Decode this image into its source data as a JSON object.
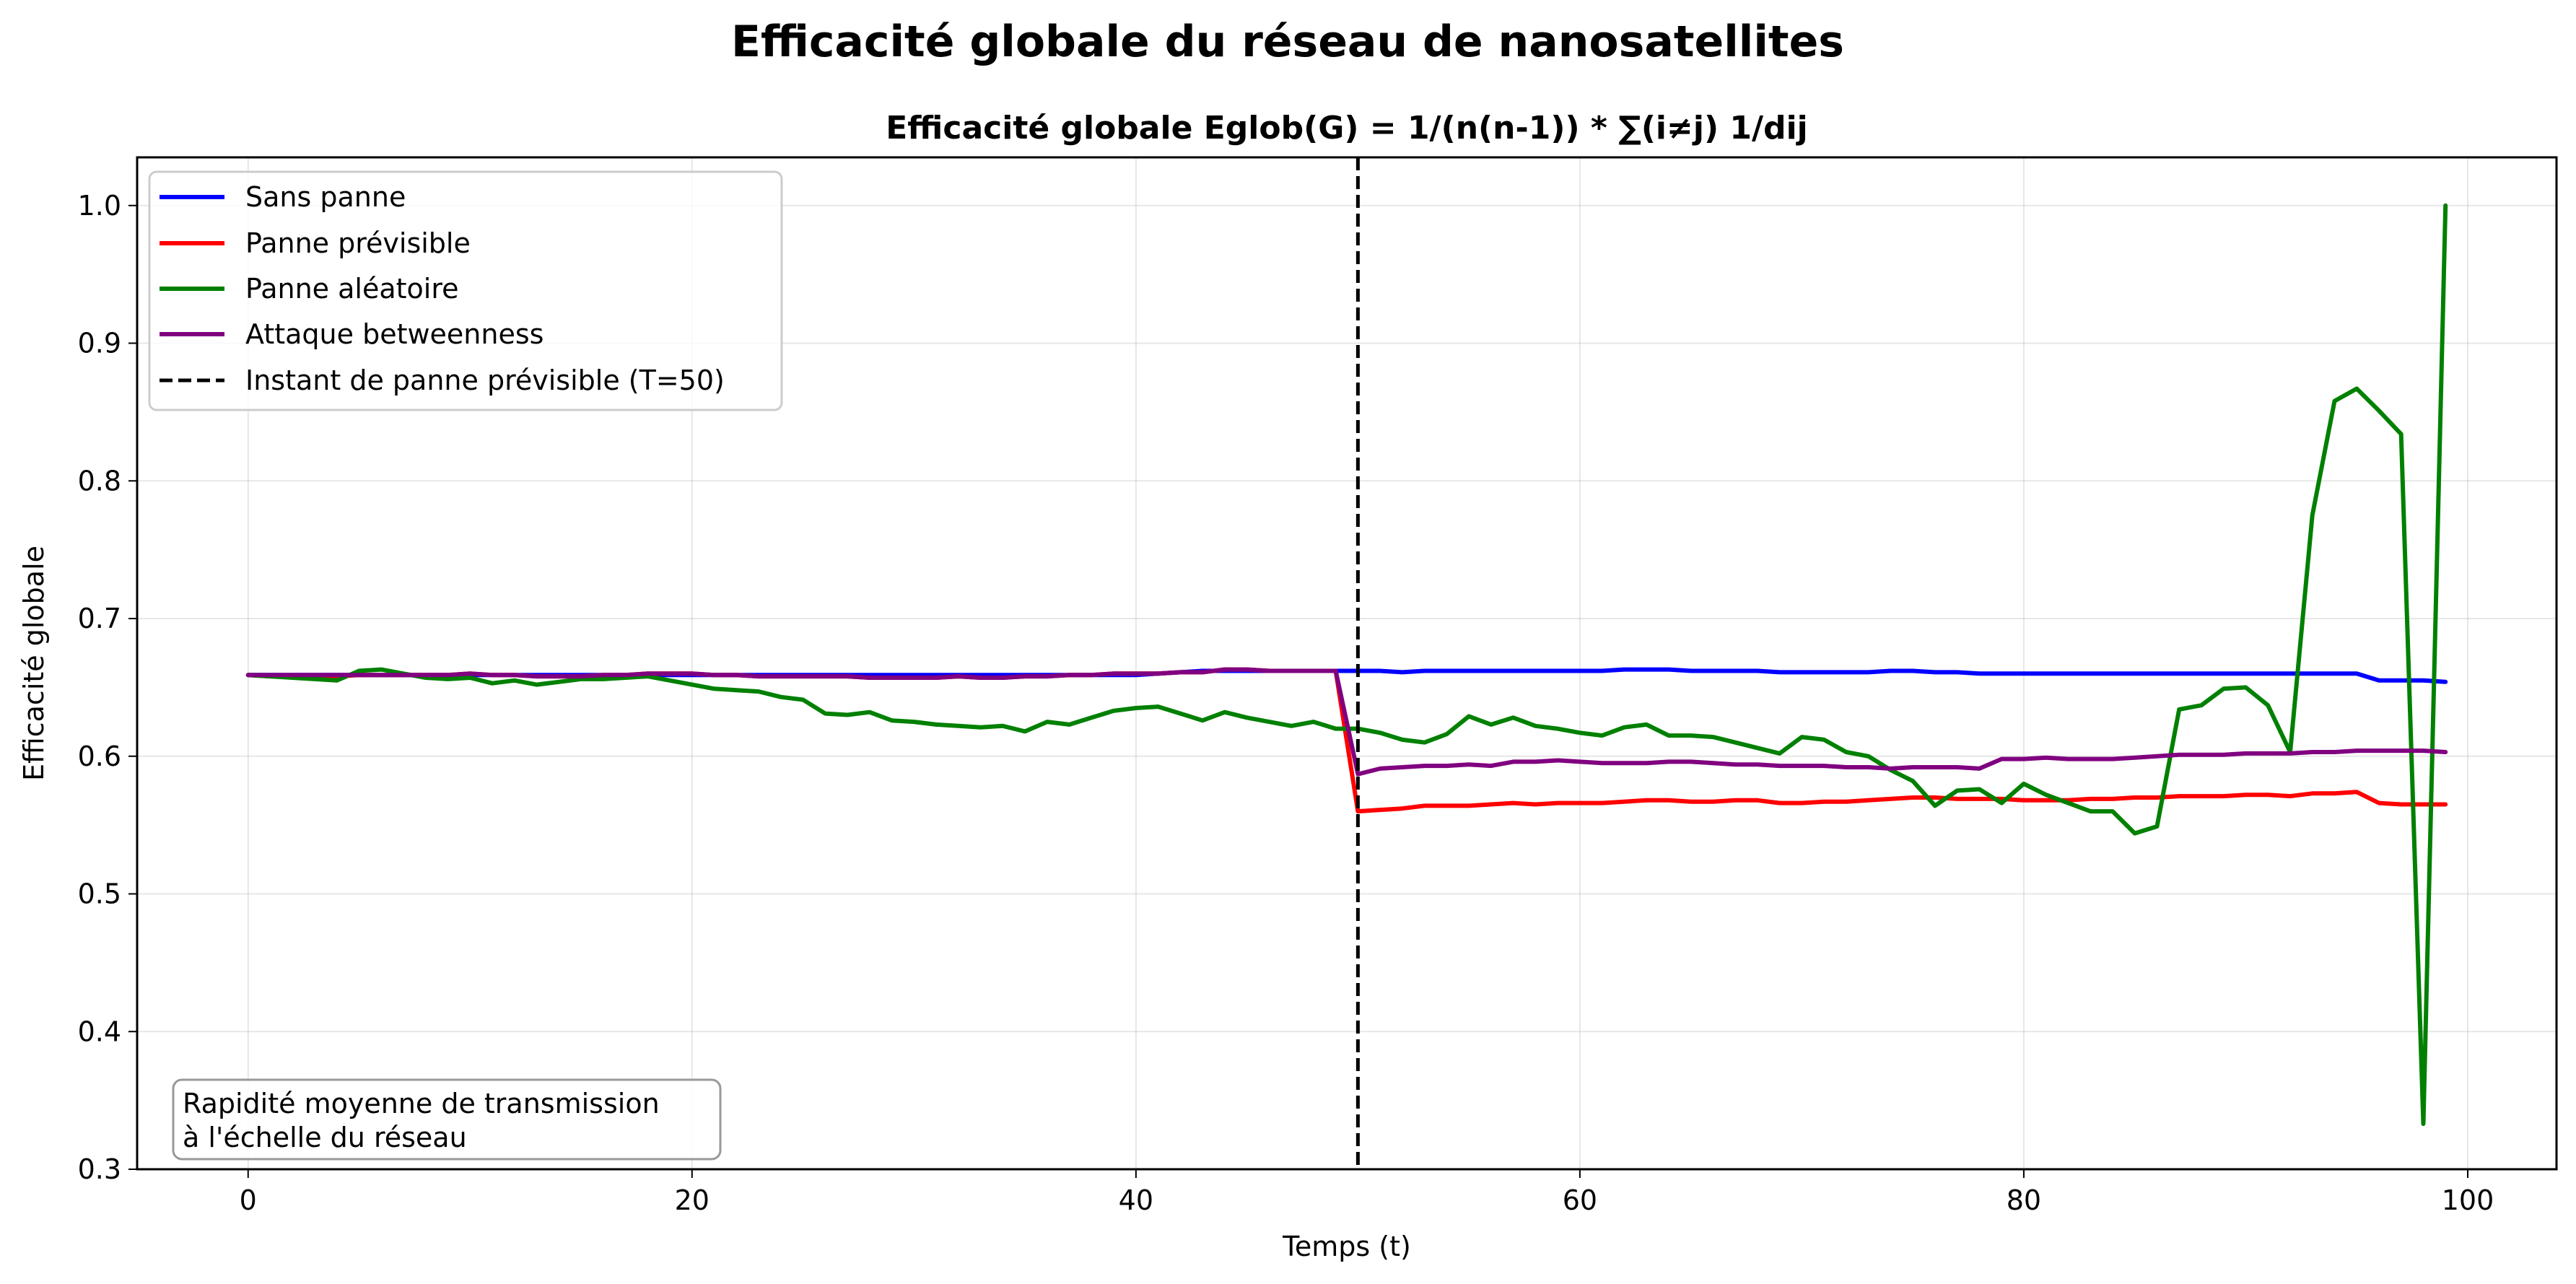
{
  "figure": {
    "suptitle": "Efficacité globale du réseau de nanosatellites"
  },
  "chart_data": {
    "type": "line",
    "title": "Efficacité globale Eglob(G) = 1/(n(n-1)) * ∑(i≠j) 1/dij",
    "xlabel": "Temps (t)",
    "ylabel": "Efficacité globale",
    "xlim": [
      -5,
      104
    ],
    "ylim": [
      0.3,
      1.035
    ],
    "xticks": [
      0,
      20,
      40,
      60,
      80,
      100
    ],
    "yticks": [
      0.3,
      0.4,
      0.5,
      0.6,
      0.7,
      0.8,
      0.9,
      1.0
    ],
    "xtick_labels": [
      "0",
      "20",
      "40",
      "60",
      "80",
      "100"
    ],
    "ytick_labels": [
      "0.3",
      "0.4",
      "0.5",
      "0.6",
      "0.7",
      "0.8",
      "0.9",
      "1.0"
    ],
    "grid": true,
    "legend_position": "top-left",
    "x": [
      0,
      1,
      2,
      3,
      4,
      5,
      6,
      7,
      8,
      9,
      10,
      11,
      12,
      13,
      14,
      15,
      16,
      17,
      18,
      19,
      20,
      21,
      22,
      23,
      24,
      25,
      26,
      27,
      28,
      29,
      30,
      31,
      32,
      33,
      34,
      35,
      36,
      37,
      38,
      39,
      40,
      41,
      42,
      43,
      44,
      45,
      46,
      47,
      48,
      49,
      50,
      51,
      52,
      53,
      54,
      55,
      56,
      57,
      58,
      59,
      60,
      61,
      62,
      63,
      64,
      65,
      66,
      67,
      68,
      69,
      70,
      71,
      72,
      73,
      74,
      75,
      76,
      77,
      78,
      79,
      80,
      81,
      82,
      83,
      84,
      85,
      86,
      87,
      88,
      89,
      90,
      91,
      92,
      93,
      94,
      95,
      96,
      97,
      98,
      99
    ],
    "series": [
      {
        "name": "Sans panne",
        "color": "#0000ff",
        "values": [
          0.659,
          0.659,
          0.659,
          0.659,
          0.659,
          0.659,
          0.659,
          0.659,
          0.659,
          0.659,
          0.659,
          0.659,
          0.659,
          0.659,
          0.659,
          0.659,
          0.659,
          0.659,
          0.659,
          0.659,
          0.659,
          0.659,
          0.659,
          0.659,
          0.659,
          0.659,
          0.659,
          0.659,
          0.659,
          0.659,
          0.659,
          0.659,
          0.659,
          0.659,
          0.659,
          0.659,
          0.659,
          0.659,
          0.659,
          0.659,
          0.659,
          0.66,
          0.661,
          0.662,
          0.662,
          0.662,
          0.662,
          0.662,
          0.662,
          0.662,
          0.662,
          0.662,
          0.661,
          0.662,
          0.662,
          0.662,
          0.662,
          0.662,
          0.662,
          0.662,
          0.662,
          0.662,
          0.663,
          0.663,
          0.663,
          0.662,
          0.662,
          0.662,
          0.662,
          0.661,
          0.661,
          0.661,
          0.661,
          0.661,
          0.662,
          0.662,
          0.661,
          0.661,
          0.66,
          0.66,
          0.66,
          0.66,
          0.66,
          0.66,
          0.66,
          0.66,
          0.66,
          0.66,
          0.66,
          0.66,
          0.66,
          0.66,
          0.66,
          0.66,
          0.66,
          0.66,
          0.655,
          0.655,
          0.655,
          0.654
        ]
      },
      {
        "name": "Panne prévisible",
        "color": "#ff0000",
        "values": [
          0.659,
          0.658,
          0.658,
          0.658,
          0.658,
          0.659,
          0.659,
          0.659,
          0.659,
          0.659,
          0.66,
          0.659,
          0.659,
          0.658,
          0.658,
          0.658,
          0.659,
          0.659,
          0.66,
          0.66,
          0.66,
          0.659,
          0.659,
          0.658,
          0.658,
          0.658,
          0.658,
          0.658,
          0.657,
          0.657,
          0.657,
          0.657,
          0.658,
          0.657,
          0.657,
          0.658,
          0.658,
          0.659,
          0.659,
          0.66,
          0.66,
          0.66,
          0.661,
          0.661,
          0.663,
          0.663,
          0.662,
          0.662,
          0.662,
          0.662,
          0.56,
          0.561,
          0.562,
          0.564,
          0.564,
          0.564,
          0.565,
          0.566,
          0.565,
          0.566,
          0.566,
          0.566,
          0.567,
          0.568,
          0.568,
          0.567,
          0.567,
          0.568,
          0.568,
          0.566,
          0.566,
          0.567,
          0.567,
          0.568,
          0.569,
          0.57,
          0.57,
          0.569,
          0.569,
          0.569,
          0.568,
          0.568,
          0.568,
          0.569,
          0.569,
          0.57,
          0.57,
          0.571,
          0.571,
          0.571,
          0.572,
          0.572,
          0.571,
          0.573,
          0.573,
          0.574,
          0.566,
          0.565,
          0.565,
          0.565
        ]
      },
      {
        "name": "Panne aléatoire",
        "color": "#008000",
        "values": [
          0.659,
          0.658,
          0.657,
          0.656,
          0.655,
          0.662,
          0.663,
          0.66,
          0.657,
          0.656,
          0.657,
          0.653,
          0.655,
          0.652,
          0.654,
          0.656,
          0.656,
          0.657,
          0.658,
          0.655,
          0.652,
          0.649,
          0.648,
          0.647,
          0.643,
          0.641,
          0.631,
          0.63,
          0.632,
          0.626,
          0.625,
          0.623,
          0.622,
          0.621,
          0.622,
          0.618,
          0.625,
          0.623,
          0.628,
          0.633,
          0.635,
          0.636,
          0.631,
          0.626,
          0.632,
          0.628,
          0.625,
          0.622,
          0.625,
          0.62,
          0.62,
          0.617,
          0.612,
          0.61,
          0.616,
          0.629,
          0.623,
          0.628,
          0.622,
          0.62,
          0.617,
          0.615,
          0.621,
          0.623,
          0.615,
          0.615,
          0.614,
          0.61,
          0.606,
          0.602,
          0.614,
          0.612,
          0.603,
          0.6,
          0.59,
          0.582,
          0.564,
          0.575,
          0.576,
          0.566,
          0.58,
          0.572,
          0.566,
          0.56,
          0.56,
          0.544,
          0.549,
          0.634,
          0.637,
          0.649,
          0.65,
          0.637,
          0.603,
          0.775,
          0.858,
          0.867,
          0.851,
          0.834,
          0.333,
          1.0
        ]
      },
      {
        "name": "Attaque betweenness",
        "color": "#800080",
        "values": [
          0.659,
          0.659,
          0.659,
          0.659,
          0.659,
          0.659,
          0.659,
          0.659,
          0.659,
          0.659,
          0.66,
          0.659,
          0.659,
          0.658,
          0.658,
          0.658,
          0.659,
          0.659,
          0.66,
          0.66,
          0.66,
          0.659,
          0.659,
          0.658,
          0.658,
          0.658,
          0.658,
          0.658,
          0.657,
          0.657,
          0.657,
          0.657,
          0.658,
          0.657,
          0.657,
          0.658,
          0.658,
          0.659,
          0.659,
          0.66,
          0.66,
          0.66,
          0.661,
          0.661,
          0.663,
          0.663,
          0.662,
          0.662,
          0.662,
          0.662,
          0.587,
          0.591,
          0.592,
          0.593,
          0.593,
          0.594,
          0.593,
          0.596,
          0.596,
          0.597,
          0.596,
          0.595,
          0.595,
          0.595,
          0.596,
          0.596,
          0.595,
          0.594,
          0.594,
          0.593,
          0.593,
          0.593,
          0.592,
          0.592,
          0.591,
          0.592,
          0.592,
          0.592,
          0.591,
          0.598,
          0.598,
          0.599,
          0.598,
          0.598,
          0.598,
          0.599,
          0.6,
          0.601,
          0.601,
          0.601,
          0.602,
          0.602,
          0.602,
          0.603,
          0.603,
          0.604,
          0.604,
          0.604,
          0.604,
          0.603
        ]
      }
    ],
    "vline": {
      "label": "Instant de panne prévisible (T=50)",
      "x": 50,
      "color": "#000000",
      "style": "dashed"
    },
    "annotation": {
      "lines": [
        "Rapidité moyenne de transmission",
        "à l'échelle du réseau"
      ]
    }
  }
}
